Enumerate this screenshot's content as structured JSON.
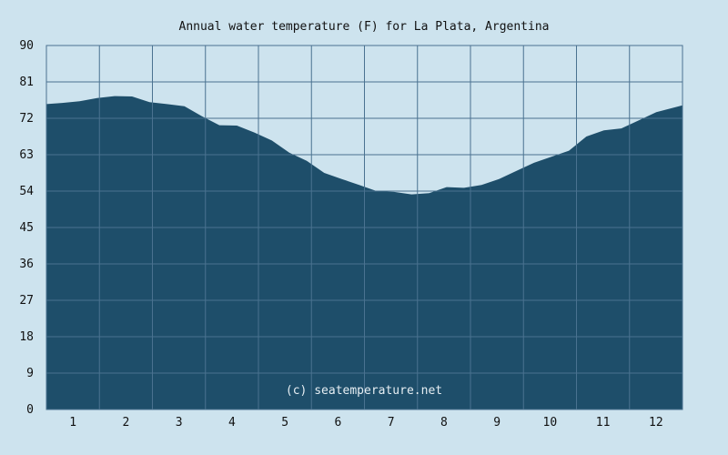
{
  "chart_data": {
    "type": "area",
    "title": "Annual water temperature (F) for La Plata, Argentina",
    "xlabel": "",
    "ylabel": "",
    "ylim": [
      0,
      90
    ],
    "y_ticks": [
      "0",
      "9",
      "18",
      "27",
      "36",
      "45",
      "54",
      "63",
      "72",
      "81",
      "90"
    ],
    "x_ticks": [
      "1",
      "2",
      "3",
      "4",
      "5",
      "6",
      "7",
      "8",
      "9",
      "10",
      "11",
      "12"
    ],
    "grid": true,
    "watermark": "(c) seatemperature.net",
    "series": [
      {
        "x": [
          1,
          10,
          20,
          30,
          40,
          50,
          60,
          70,
          80,
          90,
          100,
          110,
          120,
          130,
          140,
          150,
          160,
          170,
          180,
          190,
          200,
          210,
          220,
          230,
          240,
          250,
          260,
          270,
          280,
          290,
          300,
          310,
          320,
          330,
          340,
          350,
          365
        ],
        "values": [
          75.5,
          75.8,
          76.2,
          77.0,
          77.5,
          77.4,
          76.0,
          75.5,
          75.0,
          72.5,
          70.3,
          70.2,
          68.5,
          66.5,
          63.5,
          61.5,
          58.5,
          57.0,
          55.5,
          54.0,
          53.8,
          53.2,
          53.5,
          55.0,
          54.8,
          55.5,
          57.0,
          59.0,
          61.0,
          62.5,
          64.0,
          67.5,
          69.0,
          69.5,
          71.5,
          73.5,
          75.2
        ]
      }
    ],
    "colors": {
      "fill": "#1e4e6a",
      "background": "#cde3ee",
      "grid": "#4a7290",
      "frame": "#4a7290"
    }
  }
}
